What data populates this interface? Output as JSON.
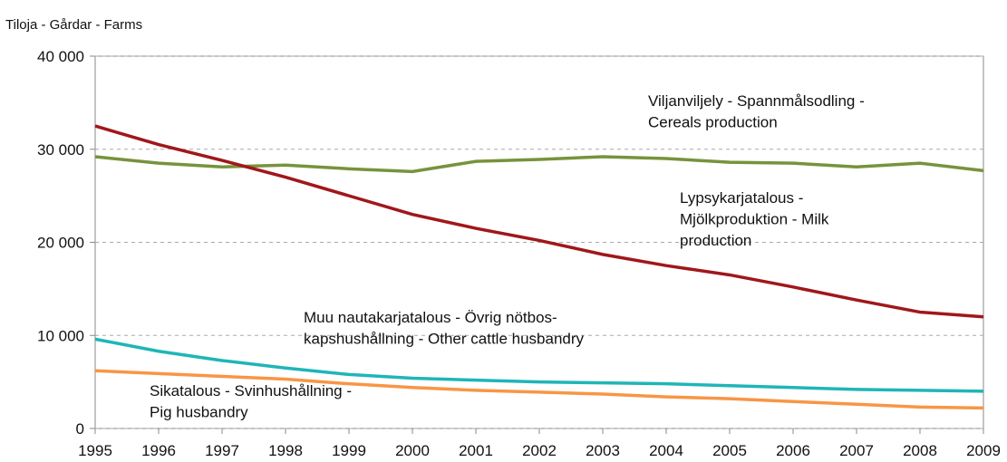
{
  "chart_data": {
    "type": "line",
    "y_axis_label": "Tiloja - Gårdar - Farms",
    "categories": [
      "1995",
      "1996",
      "1997",
      "1998",
      "1999",
      "2000",
      "2001",
      "2002",
      "2003",
      "2004",
      "2005",
      "2006",
      "2007",
      "2008",
      "2009"
    ],
    "series": [
      {
        "color": "#77933c",
        "values": [
          29200,
          28500,
          28100,
          28300,
          27900,
          27600,
          28700,
          28900,
          29200,
          29000,
          28600,
          28500,
          28100,
          28500,
          27700
        ]
      },
      {
        "color": "#a0171b",
        "values": [
          32500,
          30500,
          28800,
          27000,
          25000,
          23000,
          21500,
          20200,
          18700,
          17500,
          16500,
          15200,
          13800,
          12500,
          12000
        ]
      },
      {
        "color": "#1fb5b8",
        "values": [
          9600,
          8300,
          7300,
          6500,
          5800,
          5400,
          5200,
          5000,
          4900,
          4800,
          4600,
          4400,
          4200,
          4100,
          4000
        ]
      },
      {
        "color": "#f79646",
        "values": [
          6200,
          5900,
          5600,
          5300,
          4800,
          4400,
          4100,
          3900,
          3700,
          3400,
          3200,
          2900,
          2600,
          2300,
          2200
        ]
      }
    ],
    "annotations": [
      {
        "lines": [
          "Viljanviljely - Spannmålsodling -",
          "Cereals production"
        ]
      },
      {
        "lines": [
          "Lypsykarjatalous -",
          "Mjölkproduktion - Milk",
          "production"
        ]
      },
      {
        "lines": [
          "Muu nautakarjatalous - Övrig nötbos-",
          "kapshushållning - Other cattle husbandry"
        ]
      },
      {
        "lines": [
          "Sikatalous - Svinhushållning -",
          "Pig husbandry"
        ]
      }
    ],
    "ylim": [
      0,
      40000
    ],
    "yticks": [
      0,
      {
        "value": 10000,
        "label": "10 000"
      },
      {
        "value": 20000,
        "label": "20 000"
      },
      {
        "value": 30000,
        "label": "30 000"
      },
      {
        "value": 40000,
        "label": "40 000"
      }
    ],
    "grid": true
  }
}
